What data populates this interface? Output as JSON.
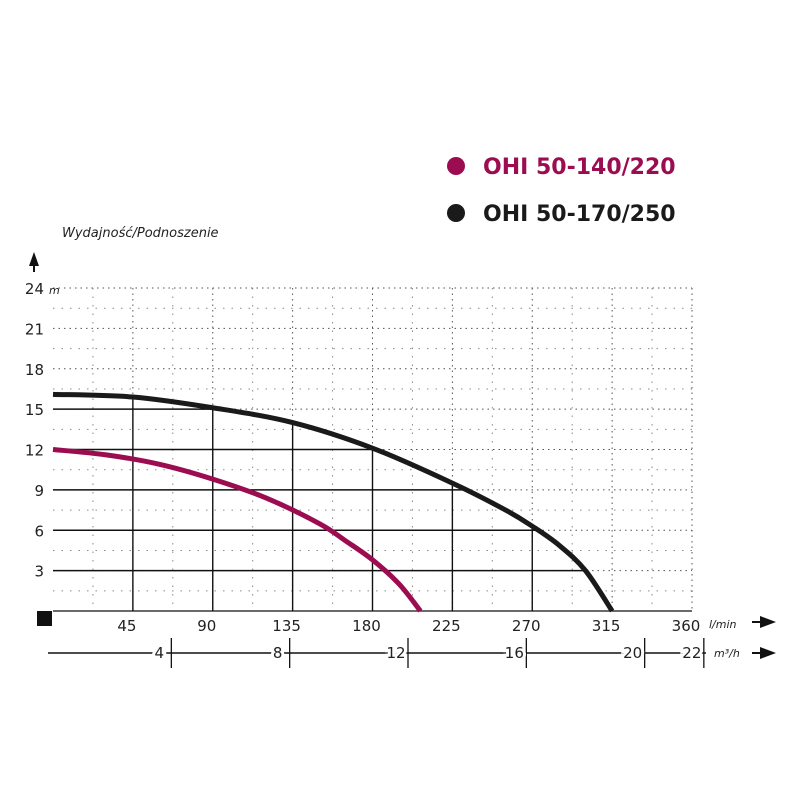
{
  "chart_data": {
    "type": "line",
    "ylabel": "Wydajność/Podnoszenie",
    "y_unit": "m",
    "x_unit": "l/min",
    "x2_unit": "m³/h",
    "ylim": [
      0,
      24
    ],
    "xlim": [
      0,
      360
    ],
    "y_ticks": [
      3,
      6,
      9,
      12,
      15,
      18,
      21,
      24
    ],
    "x_ticks": [
      45,
      90,
      135,
      180,
      225,
      270,
      315,
      360
    ],
    "x2_ticks": [
      4,
      8,
      12,
      16,
      20,
      22
    ],
    "grid": true,
    "legend_position": "top-right",
    "series": [
      {
        "name": "OHI 50-140/220",
        "color": "#9b0d50",
        "x": [
          0,
          30,
          60,
          90,
          120,
          150,
          165,
          180,
          195,
          207
        ],
        "y": [
          12,
          11.6,
          10.9,
          9.8,
          8.4,
          6.5,
          5.2,
          3.8,
          2,
          0
        ]
      },
      {
        "name": "OHI 50-170/250",
        "color": "#1a1a1a",
        "x": [
          0,
          45,
          90,
          135,
          180,
          225,
          255,
          270,
          285,
          300,
          315
        ],
        "y": [
          16.1,
          15.9,
          15.1,
          14,
          12.1,
          9.5,
          7.5,
          6.3,
          4.9,
          3,
          0
        ]
      }
    ]
  }
}
